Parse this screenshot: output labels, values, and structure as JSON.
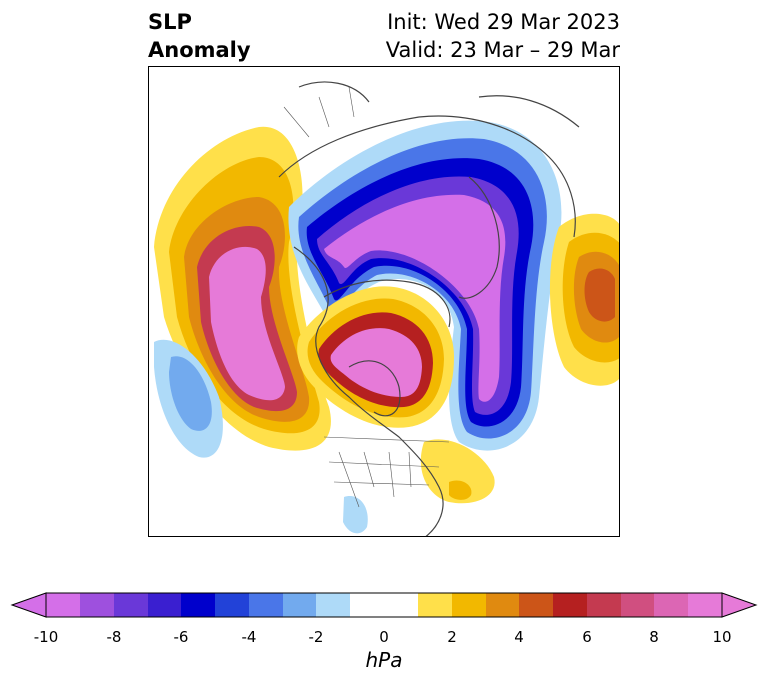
{
  "title": {
    "left_line1": "SLP",
    "left_line2": "Anomaly",
    "right_line1": "Init: Wed 29 Mar 2023",
    "right_line2": "Valid: 23 Mar – 29 Mar"
  },
  "map": {
    "projection": "north-polar-stereographic",
    "region": "Northern Hemisphere (North Pacific, North America, Arctic, North Atlantic)"
  },
  "colorbar": {
    "unit_label": "hPa",
    "range": [
      -10,
      10
    ],
    "extend": "both",
    "tick_labels": [
      "-10",
      "-8",
      "-6",
      "-4",
      "-2",
      "0",
      "2",
      "4",
      "6",
      "8",
      "10"
    ],
    "colors": [
      "#d46fe8",
      "#9e50de",
      "#6a38d8",
      "#3a1fd0",
      "#0000cc",
      "#2242d8",
      "#4a76e8",
      "#72aaee",
      "#aedaf8",
      "#ffffff",
      "#ffe04a",
      "#f2b800",
      "#e08a10",
      "#cc5518",
      "#b52020",
      "#c43a50",
      "#d04f80",
      "#dc66b4",
      "#e67ad8"
    ]
  },
  "anomaly_features": [
    {
      "sign": "negative",
      "location": "Arctic / Greenland / eastern Canada to North Atlantic",
      "min_hpa": -10
    },
    {
      "sign": "positive",
      "location": "Gulf of Alaska / NE Pacific",
      "max_hpa": 10
    },
    {
      "sign": "positive",
      "location": "Central Canada / Hudson Bay",
      "max_hpa": 10
    },
    {
      "sign": "positive",
      "location": "Scandinavia / NW Europe",
      "max_hpa": 6
    },
    {
      "sign": "negative",
      "location": "Central North Pacific",
      "min_hpa": -4
    }
  ]
}
